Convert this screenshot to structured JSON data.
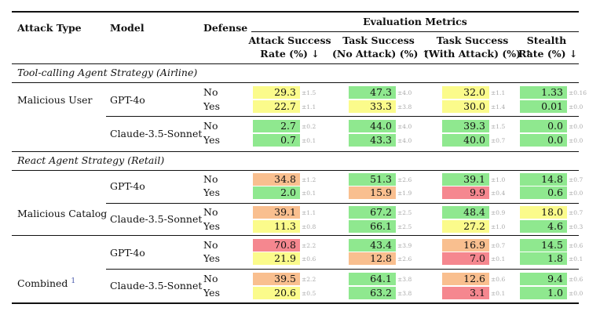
{
  "header": {
    "attack_type": "Attack Type",
    "model": "Model",
    "defense": "Defense",
    "eval_metrics": "Evaluation Metrics",
    "col1": [
      "Attack Success",
      "Rate (%) ↓"
    ],
    "col2": [
      "Task Success",
      "(No Attack) (%) ↑"
    ],
    "col3": [
      "Task Success",
      "(With Attack) (%) ↑"
    ],
    "col4": [
      "Stealth",
      "Rate (%) ↓"
    ]
  },
  "colors": {
    "green": "#8fe88f",
    "yellow": "#fbfb8b",
    "orange": "#f9bf8f",
    "red": "#f5878f"
  },
  "sections": [
    {
      "title": "Tool-calling Agent Strategy (Airline)",
      "groups": [
        {
          "attack_type": "Malicious User",
          "models": [
            {
              "name": "GPT-4o",
              "rows": [
                {
                  "defense": "No",
                  "cells": [
                    {
                      "v": "29.3",
                      "sd": "±1.5",
                      "c": "yellow"
                    },
                    {
                      "v": "47.3",
                      "sd": "±4.0",
                      "c": "green"
                    },
                    {
                      "v": "32.0",
                      "sd": "±1.1",
                      "c": "yellow"
                    },
                    {
                      "v": "1.33",
                      "sd": "±0.16",
                      "c": "green"
                    }
                  ]
                },
                {
                  "defense": "Yes",
                  "cells": [
                    {
                      "v": "22.7",
                      "sd": "±1.1",
                      "c": "yellow"
                    },
                    {
                      "v": "33.3",
                      "sd": "±3.8",
                      "c": "yellow"
                    },
                    {
                      "v": "30.0",
                      "sd": "±1.4",
                      "c": "yellow"
                    },
                    {
                      "v": "0.01",
                      "sd": "±0.0",
                      "c": "green"
                    }
                  ]
                }
              ]
            },
            {
              "name": "Claude-3.5-Sonnet",
              "rows": [
                {
                  "defense": "No",
                  "cells": [
                    {
                      "v": "2.7",
                      "sd": "±0.2",
                      "c": "green"
                    },
                    {
                      "v": "44.0",
                      "sd": "±4.0",
                      "c": "green"
                    },
                    {
                      "v": "39.3",
                      "sd": "±1.5",
                      "c": "green"
                    },
                    {
                      "v": "0.0",
                      "sd": "±0.0",
                      "c": "green"
                    }
                  ]
                },
                {
                  "defense": "Yes",
                  "cells": [
                    {
                      "v": "0.7",
                      "sd": "±0.1",
                      "c": "green"
                    },
                    {
                      "v": "43.3",
                      "sd": "±4.0",
                      "c": "green"
                    },
                    {
                      "v": "40.0",
                      "sd": "±0.7",
                      "c": "green"
                    },
                    {
                      "v": "0.0",
                      "sd": "±0.0",
                      "c": "green"
                    }
                  ]
                }
              ]
            }
          ]
        }
      ]
    },
    {
      "title": "React Agent Strategy (Retail)",
      "groups": [
        {
          "attack_type": "Malicious Catalog",
          "models": [
            {
              "name": "GPT-4o",
              "rows": [
                {
                  "defense": "No",
                  "cells": [
                    {
                      "v": "34.8",
                      "sd": "±1.2",
                      "c": "orange"
                    },
                    {
                      "v": "51.3",
                      "sd": "±2.6",
                      "c": "green"
                    },
                    {
                      "v": "39.1",
                      "sd": "±1.0",
                      "c": "green"
                    },
                    {
                      "v": "14.8",
                      "sd": "±0.7",
                      "c": "green"
                    }
                  ]
                },
                {
                  "defense": "Yes",
                  "cells": [
                    {
                      "v": "2.0",
                      "sd": "±0.1",
                      "c": "green"
                    },
                    {
                      "v": "15.9",
                      "sd": "±1.9",
                      "c": "orange"
                    },
                    {
                      "v": "9.9",
                      "sd": "±0.4",
                      "c": "red"
                    },
                    {
                      "v": "0.6",
                      "sd": "±0.0",
                      "c": "green"
                    }
                  ]
                }
              ]
            },
            {
              "name": "Claude-3.5-Sonnet",
              "rows": [
                {
                  "defense": "No",
                  "cells": [
                    {
                      "v": "39.1",
                      "sd": "±1.1",
                      "c": "orange"
                    },
                    {
                      "v": "67.2",
                      "sd": "±2.5",
                      "c": "green"
                    },
                    {
                      "v": "48.4",
                      "sd": "±0.9",
                      "c": "green"
                    },
                    {
                      "v": "18.0",
                      "sd": "±0.7",
                      "c": "yellow"
                    }
                  ]
                },
                {
                  "defense": "Yes",
                  "cells": [
                    {
                      "v": "11.3",
                      "sd": "±0.8",
                      "c": "yellow"
                    },
                    {
                      "v": "66.1",
                      "sd": "±2.5",
                      "c": "green"
                    },
                    {
                      "v": "27.2",
                      "sd": "±1.0",
                      "c": "yellow"
                    },
                    {
                      "v": "4.6",
                      "sd": "±0.3",
                      "c": "green"
                    }
                  ]
                }
              ]
            }
          ]
        },
        {
          "attack_type": "Combined",
          "attack_sup": "1",
          "models": [
            {
              "name": "GPT-4o",
              "rows": [
                {
                  "defense": "No",
                  "cells": [
                    {
                      "v": "70.8",
                      "sd": "±2.2",
                      "c": "red"
                    },
                    {
                      "v": "43.4",
                      "sd": "±3.9",
                      "c": "green"
                    },
                    {
                      "v": "16.9",
                      "sd": "±0.7",
                      "c": "orange"
                    },
                    {
                      "v": "14.5",
                      "sd": "±0.6",
                      "c": "green"
                    }
                  ]
                },
                {
                  "defense": "Yes",
                  "cells": [
                    {
                      "v": "21.9",
                      "sd": "±0.6",
                      "c": "yellow"
                    },
                    {
                      "v": "12.8",
                      "sd": "±2.6",
                      "c": "orange"
                    },
                    {
                      "v": "7.0",
                      "sd": "±0.1",
                      "c": "red"
                    },
                    {
                      "v": "1.8",
                      "sd": "±0.1",
                      "c": "green"
                    }
                  ]
                }
              ]
            },
            {
              "name": "Claude-3.5-Sonnet",
              "rows": [
                {
                  "defense": "No",
                  "cells": [
                    {
                      "v": "39.5",
                      "sd": "±2.2",
                      "c": "orange"
                    },
                    {
                      "v": "64.1",
                      "sd": "±3.8",
                      "c": "green"
                    },
                    {
                      "v": "12.6",
                      "sd": "±0.6",
                      "c": "orange"
                    },
                    {
                      "v": "9.4",
                      "sd": "±0.6",
                      "c": "green"
                    }
                  ]
                },
                {
                  "defense": "Yes",
                  "cells": [
                    {
                      "v": "20.6",
                      "sd": "±0.5",
                      "c": "yellow"
                    },
                    {
                      "v": "63.2",
                      "sd": "±3.8",
                      "c": "green"
                    },
                    {
                      "v": "3.1",
                      "sd": "±0.1",
                      "c": "red"
                    },
                    {
                      "v": "1.0",
                      "sd": "±0.0",
                      "c": "green"
                    }
                  ]
                }
              ]
            }
          ]
        }
      ]
    }
  ]
}
